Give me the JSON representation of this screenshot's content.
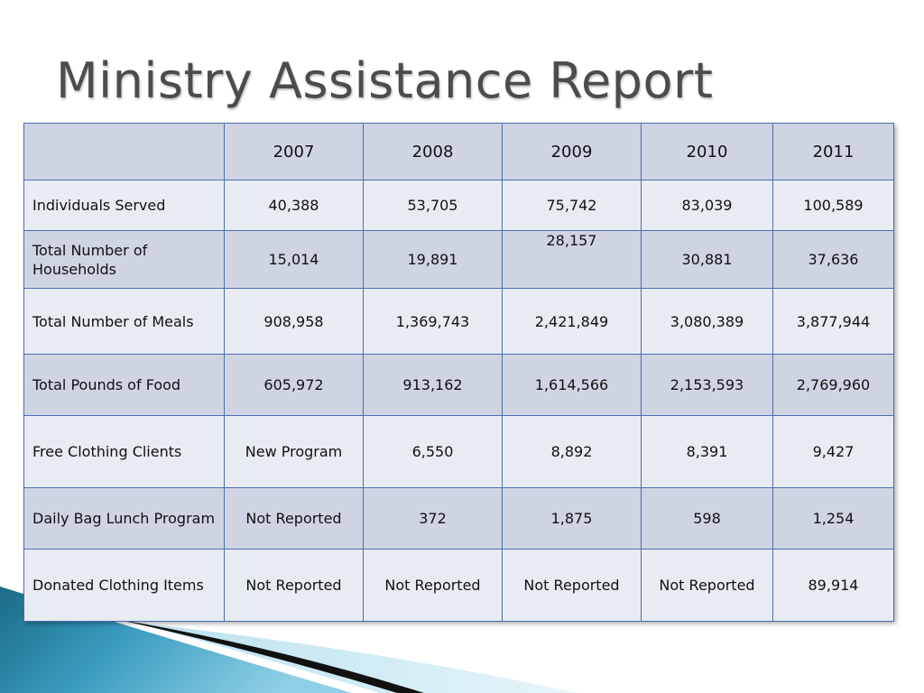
{
  "slide": {
    "title": "Ministry Assistance Report"
  },
  "table": {
    "header": {
      "corner": "",
      "years": [
        "2007",
        "2008",
        "2009",
        "2010",
        "2011"
      ]
    },
    "rows": [
      {
        "label": "Individuals Served",
        "values": [
          "40,388",
          "53,705",
          "75,742",
          "83,039",
          "100,589"
        ]
      },
      {
        "label": "Total Number of Households",
        "values": [
          "15,014",
          "19,891",
          "28,157",
          "30,881",
          "37,636"
        ]
      },
      {
        "label": "Total Number of Meals",
        "values": [
          "908,958",
          "1,369,743",
          "2,421,849",
          "3,080,389",
          "3,877,944"
        ]
      },
      {
        "label": "Total Pounds of Food",
        "values": [
          "605,972",
          "913,162",
          "1,614,566",
          "2,153,593",
          "2,769,960"
        ]
      },
      {
        "label": "Free Clothing Clients",
        "values": [
          "New Program",
          "6,550",
          "8,892",
          "8,391",
          "9,427"
        ]
      },
      {
        "label": "Daily Bag Lunch Program",
        "values": [
          "Not Reported",
          "372",
          "1,875",
          "598",
          "1,254"
        ]
      },
      {
        "label": "Donated Clothing Items",
        "values": [
          "Not Reported",
          "Not Reported",
          "Not Reported",
          "Not Reported",
          "89,914"
        ]
      }
    ]
  },
  "colors": {
    "header_fill": "#cfd4e3",
    "alt_fill": "#e9ebf2",
    "border": "#4a6fae",
    "title_text": "#4c4c4c"
  }
}
